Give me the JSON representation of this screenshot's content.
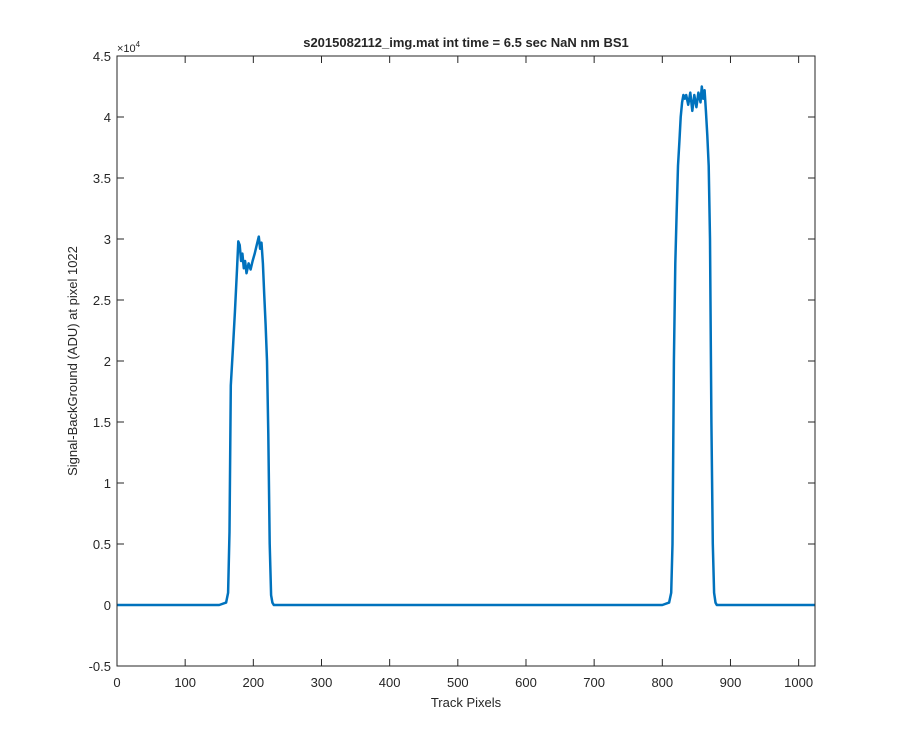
{
  "chart_data": {
    "type": "line",
    "title": "s2015082112_img.mat int time = 6.5 sec  NaN nm BS1",
    "xlabel": "Track Pixels",
    "ylabel": "Signal-BackGround (ADU) at pixel 1022",
    "xlim": [
      0,
      1024
    ],
    "ylim": [
      -0.5,
      4.5
    ],
    "y_exponent_label": "×10",
    "y_exponent_power": "4",
    "x_ticks": [
      0,
      100,
      200,
      300,
      400,
      500,
      600,
      700,
      800,
      900,
      1000
    ],
    "x_tick_labels": [
      "0",
      "100",
      "200",
      "300",
      "400",
      "500",
      "600",
      "700",
      "800",
      "900",
      "1000"
    ],
    "y_ticks": [
      -0.5,
      0,
      0.5,
      1,
      1.5,
      2,
      2.5,
      3,
      3.5,
      4,
      4.5
    ],
    "y_tick_labels": [
      "-0.5",
      "0",
      "0.5",
      "1",
      "1.5",
      "2",
      "2.5",
      "3",
      "3.5",
      "4",
      "4.5"
    ],
    "grid": false,
    "line_color": "#0072BD",
    "series": [
      {
        "x": [
          0,
          150,
          160,
          163,
          165,
          167,
          170,
          173,
          176,
          178,
          180,
          182,
          184,
          186,
          188,
          190,
          193,
          196,
          199,
          202,
          205,
          208,
          210,
          212,
          214,
          216,
          218,
          220,
          222,
          224,
          226,
          228,
          230,
          235,
          300,
          400,
          500,
          600,
          700,
          800,
          810,
          813,
          815,
          817,
          819,
          821,
          823,
          825,
          827,
          829,
          831,
          833,
          835,
          838,
          841,
          844,
          847,
          850,
          853,
          856,
          858,
          860,
          862,
          864,
          866,
          868,
          870,
          872,
          874,
          876,
          878,
          880,
          890,
          1000,
          1024
        ],
        "y": [
          0,
          0,
          0.02,
          0.1,
          0.6,
          1.8,
          2.1,
          2.4,
          2.75,
          2.98,
          2.95,
          2.82,
          2.88,
          2.76,
          2.82,
          2.72,
          2.8,
          2.75,
          2.82,
          2.88,
          2.95,
          3.02,
          2.92,
          2.97,
          2.8,
          2.55,
          2.3,
          2.0,
          1.4,
          0.5,
          0.08,
          0.02,
          0,
          0,
          0,
          0,
          0,
          0,
          0,
          0,
          0.02,
          0.1,
          0.5,
          2.0,
          2.8,
          3.2,
          3.6,
          3.8,
          4.0,
          4.12,
          4.18,
          4.15,
          4.18,
          4.1,
          4.2,
          4.05,
          4.18,
          4.08,
          4.2,
          4.12,
          4.25,
          4.15,
          4.22,
          4.05,
          3.85,
          3.6,
          3.0,
          1.5,
          0.5,
          0.1,
          0.02,
          0,
          0,
          0,
          0
        ]
      }
    ]
  }
}
